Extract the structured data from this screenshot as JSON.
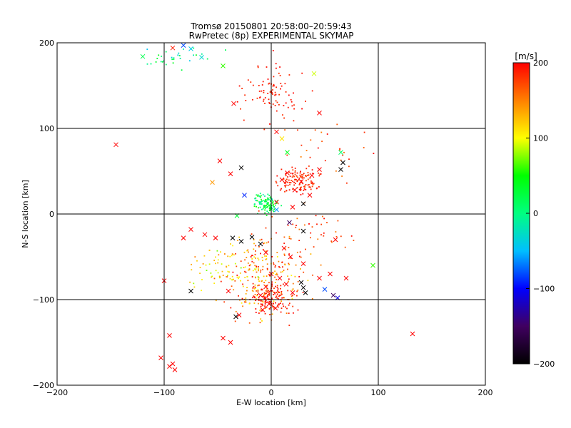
{
  "chart_data": {
    "type": "scatter",
    "title": "Tromsø 20150801 20:58:00–20:59:43",
    "subtitle": "RwPretec (8p) EXPERIMENTAL SKYMAP",
    "xlabel": "E-W location [km]",
    "ylabel": "N-S location [km]",
    "xlim": [
      -200,
      200
    ],
    "ylim": [
      -200,
      200
    ],
    "xticks": [
      -200,
      -100,
      0,
      100,
      200
    ],
    "yticks": [
      -200,
      -100,
      0,
      100,
      200
    ],
    "grid": true,
    "colorbar": {
      "label": "[m/s]",
      "range": [
        -200,
        200
      ],
      "ticks": [
        200,
        100,
        0,
        -100,
        -200
      ],
      "colors": [
        "#000000",
        "#400060",
        "#0000ff",
        "#00bfff",
        "#00ff80",
        "#00ff00",
        "#ffff00",
        "#ff8000",
        "#ff0000"
      ]
    },
    "points_crosses": [
      {
        "x": -145,
        "y": 81,
        "v": 200
      },
      {
        "x": -120,
        "y": 184,
        "v": 20
      },
      {
        "x": -92,
        "y": 194,
        "v": 190
      },
      {
        "x": -82,
        "y": 197,
        "v": -80
      },
      {
        "x": -75,
        "y": 193,
        "v": -40
      },
      {
        "x": -65,
        "y": 183,
        "v": -30
      },
      {
        "x": -45,
        "y": 173,
        "v": 60
      },
      {
        "x": 40,
        "y": 164,
        "v": 90
      },
      {
        "x": -35,
        "y": 129,
        "v": 200
      },
      {
        "x": 45,
        "y": 118,
        "v": 200
      },
      {
        "x": 5,
        "y": 96,
        "v": 200
      },
      {
        "x": 10,
        "y": 88,
        "v": 110
      },
      {
        "x": 15,
        "y": 72,
        "v": 40
      },
      {
        "x": 65,
        "y": 72,
        "v": 10
      },
      {
        "x": -48,
        "y": 62,
        "v": 200
      },
      {
        "x": -38,
        "y": 47,
        "v": 200
      },
      {
        "x": -28,
        "y": 54,
        "v": -200
      },
      {
        "x": -55,
        "y": 37,
        "v": 140
      },
      {
        "x": -25,
        "y": 22,
        "v": -90
      },
      {
        "x": 20,
        "y": 8,
        "v": 200
      },
      {
        "x": 5,
        "y": 14,
        "v": 200
      },
      {
        "x": 30,
        "y": 12,
        "v": -200
      },
      {
        "x": 65,
        "y": 52,
        "v": -200
      },
      {
        "x": 67,
        "y": 60,
        "v": -200
      },
      {
        "x": -32,
        "y": -2,
        "v": 30
      },
      {
        "x": 17,
        "y": -10,
        "v": -150
      },
      {
        "x": 30,
        "y": -20,
        "v": -200
      },
      {
        "x": -75,
        "y": -18,
        "v": 200
      },
      {
        "x": -62,
        "y": -24,
        "v": 200
      },
      {
        "x": -52,
        "y": -28,
        "v": 200
      },
      {
        "x": -82,
        "y": -28,
        "v": 200
      },
      {
        "x": -36,
        "y": -28,
        "v": -200
      },
      {
        "x": -28,
        "y": -32,
        "v": -200
      },
      {
        "x": -18,
        "y": -27,
        "v": -200
      },
      {
        "x": -10,
        "y": -35,
        "v": -200
      },
      {
        "x": -5,
        "y": -45,
        "v": 200
      },
      {
        "x": 12,
        "y": -40,
        "v": 200
      },
      {
        "x": 18,
        "y": -50,
        "v": 200
      },
      {
        "x": 30,
        "y": -58,
        "v": 200
      },
      {
        "x": 60,
        "y": -30,
        "v": 200
      },
      {
        "x": 0,
        "y": -70,
        "v": 200
      },
      {
        "x": 8,
        "y": -75,
        "v": 200
      },
      {
        "x": 14,
        "y": -82,
        "v": 200
      },
      {
        "x": 20,
        "y": -92,
        "v": 200
      },
      {
        "x": -5,
        "y": -85,
        "v": 200
      },
      {
        "x": -10,
        "y": -95,
        "v": 200
      },
      {
        "x": -2,
        "y": -105,
        "v": 200
      },
      {
        "x": -8,
        "y": -112,
        "v": 200
      },
      {
        "x": 4,
        "y": -110,
        "v": 200
      },
      {
        "x": 28,
        "y": -80,
        "v": -200
      },
      {
        "x": 30,
        "y": -86,
        "v": -200
      },
      {
        "x": 32,
        "y": -92,
        "v": -200
      },
      {
        "x": 50,
        "y": -88,
        "v": -80
      },
      {
        "x": 58,
        "y": -95,
        "v": -150
      },
      {
        "x": 62,
        "y": -98,
        "v": -110
      },
      {
        "x": 45,
        "y": -75,
        "v": 200
      },
      {
        "x": 55,
        "y": -70,
        "v": 200
      },
      {
        "x": 70,
        "y": -75,
        "v": 200
      },
      {
        "x": 95,
        "y": -60,
        "v": 60
      },
      {
        "x": -100,
        "y": -78,
        "v": 200
      },
      {
        "x": -75,
        "y": -90,
        "v": -200
      },
      {
        "x": -40,
        "y": -90,
        "v": 200
      },
      {
        "x": -30,
        "y": -118,
        "v": 200
      },
      {
        "x": -33,
        "y": -120,
        "v": -200
      },
      {
        "x": -95,
        "y": -142,
        "v": 200
      },
      {
        "x": -45,
        "y": -145,
        "v": 200
      },
      {
        "x": -38,
        "y": -150,
        "v": 200
      },
      {
        "x": -92,
        "y": -175,
        "v": 200
      },
      {
        "x": -95,
        "y": -178,
        "v": 200
      },
      {
        "x": -90,
        "y": -182,
        "v": 200
      },
      {
        "x": -103,
        "y": -168,
        "v": 200
      },
      {
        "x": 132,
        "y": -140,
        "v": 200
      },
      {
        "x": 22,
        "y": 28,
        "v": 200
      },
      {
        "x": 28,
        "y": 38,
        "v": 200
      },
      {
        "x": 38,
        "y": 45,
        "v": 200
      },
      {
        "x": 45,
        "y": 52,
        "v": 200
      },
      {
        "x": 10,
        "y": 40,
        "v": 200
      },
      {
        "x": 15,
        "y": 48,
        "v": 200
      },
      {
        "x": 36,
        "y": 22,
        "v": 200
      },
      {
        "x": 5,
        "y": 5,
        "v": -60
      },
      {
        "x": -2,
        "y": 10,
        "v": 30
      }
    ]
  }
}
